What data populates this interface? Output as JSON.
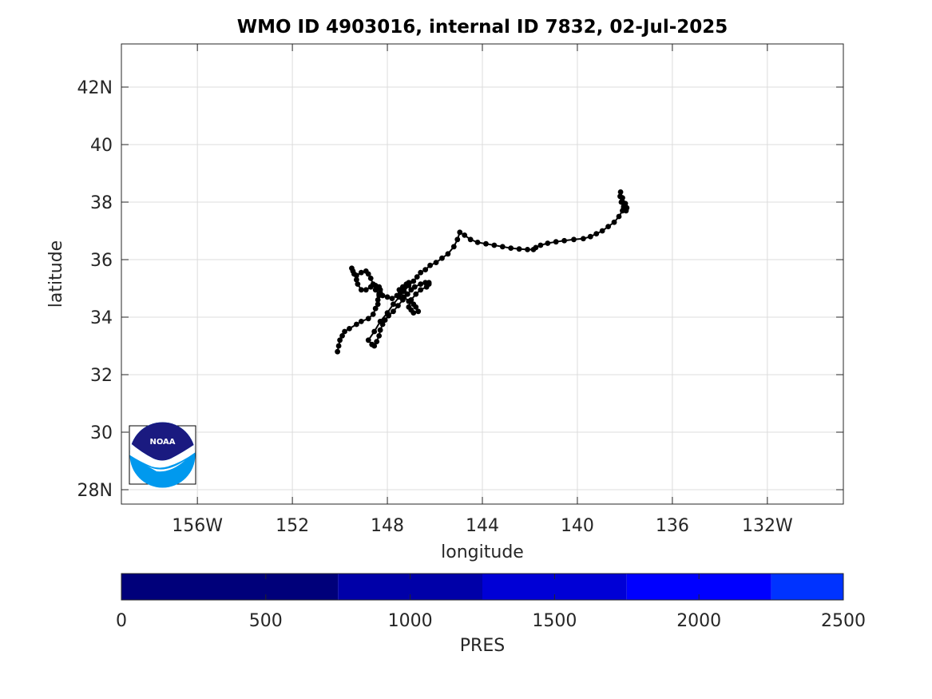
{
  "chart_data": {
    "type": "scatter",
    "title": "WMO ID 4903016, internal ID 7832, 02-Jul-2025",
    "xlabel": "longitude",
    "ylabel": "latitude",
    "xlim": [
      -159.2,
      -128.8
    ],
    "ylim": [
      27.5,
      43.5
    ],
    "grid": true,
    "x_ticks": [
      -156,
      -152,
      -148,
      -144,
      -140,
      -136,
      -132
    ],
    "x_tick_labels": [
      "156W",
      "152",
      "148",
      "144",
      "140",
      "136",
      "132W"
    ],
    "y_ticks": [
      28,
      30,
      32,
      34,
      36,
      38,
      40,
      42
    ],
    "y_tick_labels": [
      "28N",
      "30",
      "32",
      "34",
      "36",
      "38",
      "40",
      "42N"
    ],
    "marker_color": "#000000",
    "series": [
      {
        "x": [
          -150.1,
          -150.05,
          -150.0,
          -149.9,
          -149.8,
          -149.6,
          -149.3,
          -149.1,
          -148.8,
          -148.6,
          -148.5,
          -148.4,
          -148.4,
          -148.35,
          -148.3,
          -148.3,
          -148.35,
          -148.5,
          -148.7,
          -148.9,
          -149.1,
          -149.25,
          -149.3,
          -149.4,
          -149.5,
          -149.45,
          -149.3,
          -149.1,
          -148.9,
          -148.8,
          -148.7,
          -148.6,
          -148.5,
          -148.35,
          -148.2,
          -148.0,
          -147.8,
          -147.6,
          -147.45,
          -147.3,
          -147.15,
          -147.1,
          -147.2,
          -147.35,
          -147.5,
          -147.45,
          -147.3,
          -147.1,
          -146.9,
          -146.8,
          -146.7,
          -146.9,
          -147.0,
          -147.1,
          -147.0,
          -146.8,
          -146.6,
          -146.35,
          -146.25,
          -146.25,
          -146.4,
          -146.6,
          -146.85,
          -147.0,
          -147.15,
          -147.35,
          -147.55,
          -147.75,
          -147.95,
          -148.1,
          -148.2,
          -148.3,
          -148.35,
          -148.45,
          -148.55,
          -148.65,
          -148.8,
          -148.55,
          -148.3,
          -148.0,
          -147.75,
          -147.5,
          -147.3,
          -147.1,
          -146.9,
          -146.75,
          -146.6,
          -146.4,
          -146.2,
          -145.95,
          -145.7,
          -145.45,
          -145.2,
          -145.05,
          -144.95,
          -144.75,
          -144.5,
          -144.2,
          -143.85,
          -143.5,
          -143.15,
          -142.8,
          -142.45,
          -142.1,
          -141.85,
          -141.75,
          -141.55,
          -141.25,
          -140.9,
          -140.55,
          -140.15,
          -139.75,
          -139.45,
          -139.2,
          -138.95,
          -138.7,
          -138.45,
          -138.25,
          -138.1,
          -137.98,
          -137.95,
          -138.05,
          -138.15,
          -138.2,
          -138.18,
          -138.1,
          -137.98,
          -137.92,
          -137.95,
          -138.05
        ],
        "y": [
          32.8,
          33.0,
          33.2,
          33.35,
          33.5,
          33.6,
          33.75,
          33.85,
          33.95,
          34.1,
          34.3,
          34.45,
          34.6,
          34.75,
          34.85,
          34.95,
          35.05,
          35.1,
          35.05,
          34.95,
          34.95,
          35.15,
          35.3,
          35.5,
          35.7,
          35.6,
          35.45,
          35.55,
          35.6,
          35.5,
          35.35,
          35.15,
          34.95,
          34.8,
          34.75,
          34.7,
          34.65,
          34.75,
          34.85,
          35.0,
          35.1,
          35.2,
          35.15,
          35.05,
          34.95,
          34.85,
          34.7,
          34.55,
          34.45,
          34.35,
          34.2,
          34.15,
          34.25,
          34.35,
          34.6,
          34.8,
          34.95,
          35.05,
          35.15,
          35.2,
          35.2,
          35.15,
          35.05,
          34.95,
          34.8,
          34.6,
          34.4,
          34.2,
          34.05,
          33.9,
          33.75,
          33.55,
          33.35,
          33.15,
          33.0,
          33.05,
          33.2,
          33.5,
          33.85,
          34.15,
          34.45,
          34.7,
          34.9,
          35.1,
          35.25,
          35.4,
          35.55,
          35.65,
          35.8,
          35.9,
          36.05,
          36.2,
          36.45,
          36.7,
          36.95,
          36.85,
          36.7,
          36.6,
          36.55,
          36.5,
          36.45,
          36.4,
          36.37,
          36.35,
          36.35,
          36.42,
          36.5,
          36.57,
          36.62,
          36.66,
          36.7,
          36.73,
          36.8,
          36.9,
          37.0,
          37.15,
          37.3,
          37.5,
          37.7,
          37.85,
          37.75,
          37.85,
          38.0,
          38.2,
          38.35,
          38.15,
          37.95,
          37.8,
          37.7,
          37.8
        ]
      }
    ]
  },
  "colorbar": {
    "label": "PRES",
    "ticks": [
      0,
      500,
      1000,
      1500,
      2000,
      2500
    ],
    "tick_labels": [
      "0",
      "500",
      "1000",
      "1500",
      "2000",
      "2500"
    ],
    "segments": [
      {
        "from": 0,
        "to": 750,
        "color": "#00007a"
      },
      {
        "from": 750,
        "to": 1250,
        "color": "#0000a8"
      },
      {
        "from": 1250,
        "to": 1750,
        "color": "#0000d6"
      },
      {
        "from": 1750,
        "to": 2250,
        "color": "#0000ff"
      },
      {
        "from": 2250,
        "to": 2500,
        "color": "#0033ff"
      }
    ]
  },
  "logo": {
    "text": "NOAA",
    "top_color": "#1a1a80",
    "bottom_color": "#0099ee"
  }
}
